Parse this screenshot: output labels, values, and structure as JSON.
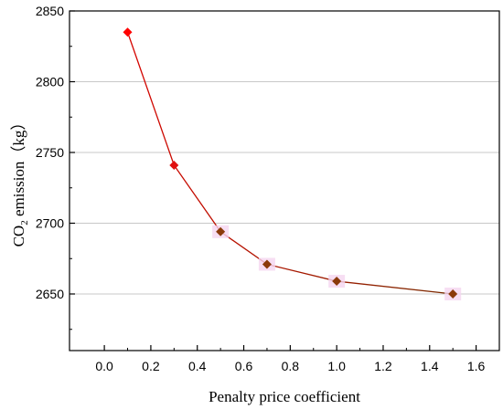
{
  "chart_data": {
    "type": "line",
    "xlabel": "Penalty price coefficient",
    "ylabel": {
      "prefix": "CO",
      "subscript": "2",
      "suffix": " emission（kg）"
    },
    "xlim": [
      -0.15,
      1.7
    ],
    "ylim": [
      2610,
      2850
    ],
    "xticks": [
      0.0,
      0.2,
      0.4,
      0.6,
      0.8,
      1.0,
      1.2,
      1.4,
      1.6
    ],
    "xtick_labels": [
      "0.0",
      "0.2",
      "0.4",
      "0.6",
      "0.8",
      "1.0",
      "1.2",
      "1.4",
      "1.6"
    ],
    "yticks": [
      2650,
      2700,
      2750,
      2800,
      2850
    ],
    "ytick_labels": [
      "2650",
      "2700",
      "2750",
      "2800",
      "2850"
    ],
    "grid": "horizontal",
    "legend": "none",
    "series": [
      {
        "x": [
          0.1,
          0.3,
          0.5,
          0.7,
          1.0,
          1.5
        ],
        "y": [
          2835,
          2741,
          2694,
          2671,
          2659,
          2650
        ],
        "marker": "diamond",
        "line_color_start": "#e00000",
        "line_color_end": "#7a2a00",
        "marker_colors": [
          "#ff0000",
          "#e01010",
          "#8b3a0a",
          "#8b3a0a",
          "#8b3a0a",
          "#8b3a0a"
        ]
      }
    ]
  }
}
